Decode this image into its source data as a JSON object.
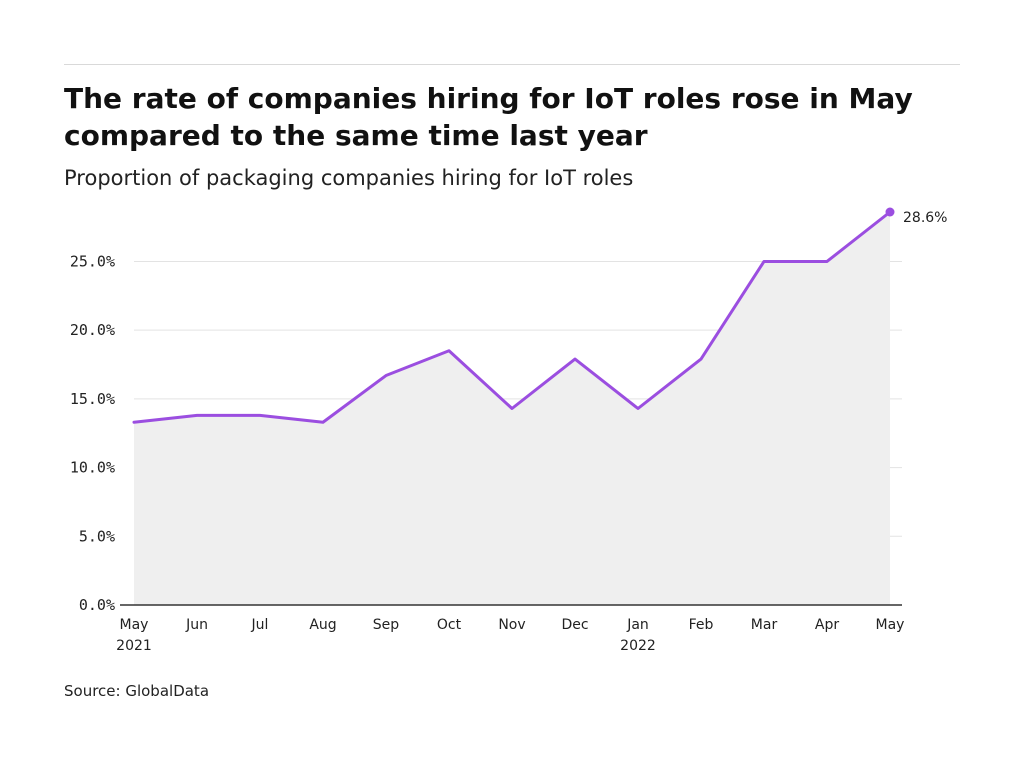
{
  "header": {
    "title": "The rate of companies hiring for IoT roles rose in May compared to the same time last year",
    "subtitle": "Proportion of packaging companies hiring for IoT roles"
  },
  "footer": {
    "source": "Source: GlobalData"
  },
  "colors": {
    "line": "#9b4ee0",
    "area": "#efefef",
    "grid": "#e3e3e3",
    "axis": "#333333"
  },
  "chart_data": {
    "type": "area",
    "title": "The rate of companies hiring for IoT roles rose in May compared to the same time last year",
    "subtitle": "Proportion of packaging companies hiring for IoT roles",
    "categories": [
      "May",
      "Jun",
      "Jul",
      "Aug",
      "Sep",
      "Oct",
      "Nov",
      "Dec",
      "Jan",
      "Feb",
      "Mar",
      "Apr",
      "May"
    ],
    "category_years": [
      "2021",
      "",
      "",
      "",
      "",
      "",
      "",
      "",
      "2022",
      "",
      "",
      "",
      ""
    ],
    "values": [
      13.3,
      13.8,
      13.8,
      13.3,
      16.7,
      18.5,
      14.3,
      17.9,
      14.3,
      17.9,
      25.0,
      25.0,
      28.6
    ],
    "ylim": [
      0,
      28.6
    ],
    "yticks": [
      0,
      5,
      10,
      15,
      20,
      25
    ],
    "ytick_labels": [
      "0.0%",
      "5.0%",
      "10.0%",
      "15.0%",
      "20.0%",
      "25.0%"
    ],
    "end_label": "28.6%",
    "grid": true,
    "legend": "none"
  }
}
